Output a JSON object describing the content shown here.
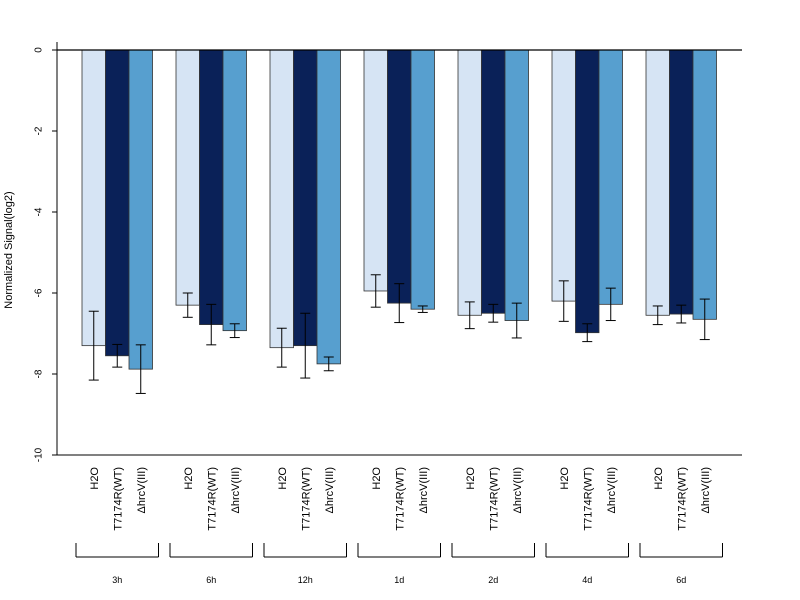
{
  "chart_data": {
    "type": "bar",
    "ylabel": "Normalized Signal(log2)",
    "ylim": [
      -10,
      0
    ],
    "yticks": [
      "0",
      "-2",
      "-4",
      "-6",
      "-8",
      "-10"
    ],
    "categories": [
      "3h",
      "6h",
      "12h",
      "1d",
      "2d",
      "4d",
      "6d"
    ],
    "series": [
      {
        "name": "H2O",
        "color": "#d6e4f4",
        "values": [
          -7.3,
          -6.3,
          -7.35,
          -5.95,
          -6.55,
          -6.2,
          -6.55
        ],
        "errors": [
          0.85,
          0.3,
          0.48,
          0.4,
          0.33,
          0.5,
          0.23
        ]
      },
      {
        "name": "T7174R(WT)",
        "color": "#0a2158",
        "values": [
          -7.55,
          -6.78,
          -7.3,
          -6.25,
          -6.5,
          -6.98,
          -6.52
        ],
        "errors": [
          0.28,
          0.5,
          0.8,
          0.48,
          0.22,
          0.22,
          0.22
        ]
      },
      {
        "name": "ΔhrcV(III)",
        "color": "#579fcf",
        "values": [
          -7.88,
          -6.93,
          -7.75,
          -6.4,
          -6.68,
          -6.28,
          -6.65
        ],
        "errors": [
          0.6,
          0.17,
          0.17,
          0.08,
          0.43,
          0.4,
          0.5
        ]
      }
    ],
    "bar_labels": [
      "H2O",
      "T7174R(WT)",
      "ΔhrcV(III)"
    ],
    "grid": false,
    "legend": "none"
  }
}
